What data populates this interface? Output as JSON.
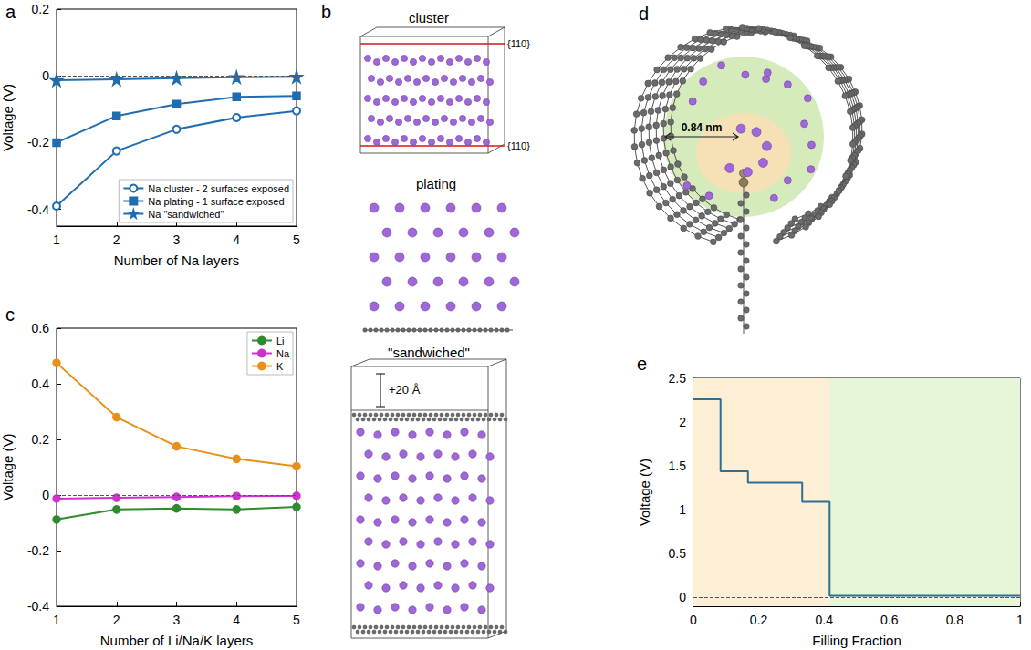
{
  "chart_data": [
    {
      "panel": "a",
      "type": "line",
      "x": [
        1,
        2,
        3,
        4,
        5
      ],
      "xlim": [
        1,
        5
      ],
      "xticks": [
        1,
        2,
        3,
        4,
        5
      ],
      "ylim": [
        -0.45,
        0.2
      ],
      "yticks": [
        -0.4,
        -0.2,
        0,
        0.2
      ],
      "xlabel": "Number of Na layers",
      "ylabel": "Voltage (V)",
      "hline": 0,
      "legend": "lower right",
      "grid": false,
      "series": [
        {
          "name": "Na cluster - 2 surfaces exposed",
          "color": "#1f6db0",
          "marker": "open_circle",
          "values": [
            -0.39,
            -0.225,
            -0.16,
            -0.125,
            -0.105
          ]
        },
        {
          "name": "Na plating - 1 surface exposed",
          "color": "#1f6db0",
          "marker": "square",
          "values": [
            -0.2,
            -0.12,
            -0.085,
            -0.063,
            -0.06
          ]
        },
        {
          "name": "Na \"sandwiched\"",
          "color": "#1f6db0",
          "marker": "star",
          "values": [
            -0.013,
            -0.01,
            -0.007,
            -0.004,
            -0.003
          ]
        }
      ]
    },
    {
      "panel": "c",
      "type": "line",
      "x": [
        1,
        2,
        3,
        4,
        5
      ],
      "xlim": [
        1,
        5
      ],
      "xticks": [
        1,
        2,
        3,
        4,
        5
      ],
      "ylim": [
        -0.4,
        0.6
      ],
      "yticks": [
        -0.4,
        -0.2,
        0,
        0.2,
        0.4,
        0.6
      ],
      "xlabel": "Number of Li/Na/K layers",
      "ylabel": "Voltage (V)",
      "hline": 0,
      "legend": "upper right",
      "grid": false,
      "series": [
        {
          "name": "Li",
          "color": "#2e8b2e",
          "marker": "circle",
          "values": [
            -0.088,
            -0.052,
            -0.048,
            -0.052,
            -0.043
          ]
        },
        {
          "name": "Na",
          "color": "#cc33cc",
          "marker": "circle",
          "values": [
            -0.013,
            -0.01,
            -0.007,
            -0.004,
            -0.003
          ]
        },
        {
          "name": "K",
          "color": "#e8901a",
          "marker": "circle",
          "values": [
            0.475,
            0.28,
            0.175,
            0.13,
            0.103
          ]
        }
      ]
    },
    {
      "panel": "e",
      "type": "line",
      "line_style": "step",
      "x": [
        0,
        0.083,
        0.167,
        0.333,
        0.417,
        1
      ],
      "values": [
        2.26,
        1.44,
        1.31,
        1.09,
        0.02,
        0.02
      ],
      "color": "#2f6f94",
      "xlim": [
        0,
        1
      ],
      "xticks": [
        0,
        0.2,
        0.4,
        0.6,
        0.8,
        1
      ],
      "ylim": [
        -0.1,
        2.5
      ],
      "yticks": [
        0,
        0.5,
        1,
        1.5,
        2,
        2.5
      ],
      "xlabel": "Filling Fraction",
      "ylabel": "Voltage (V)",
      "hline": 0,
      "grid": false,
      "regions": [
        {
          "from": 0,
          "to": 0.417,
          "color": "#fdefd6"
        },
        {
          "from": 0.417,
          "to": 1,
          "color": "#e7f5d9"
        }
      ]
    }
  ],
  "diagrams": {
    "b": {
      "panel": "b",
      "cluster": {
        "title": "cluster",
        "planes": [
          "{110}",
          "{110}"
        ]
      },
      "plating": {
        "title": "plating"
      },
      "sandwiched": {
        "title": "\"sandwiched\"",
        "gap": "+20 Å"
      }
    },
    "d": {
      "panel": "d",
      "label": "0.84 nm"
    }
  }
}
